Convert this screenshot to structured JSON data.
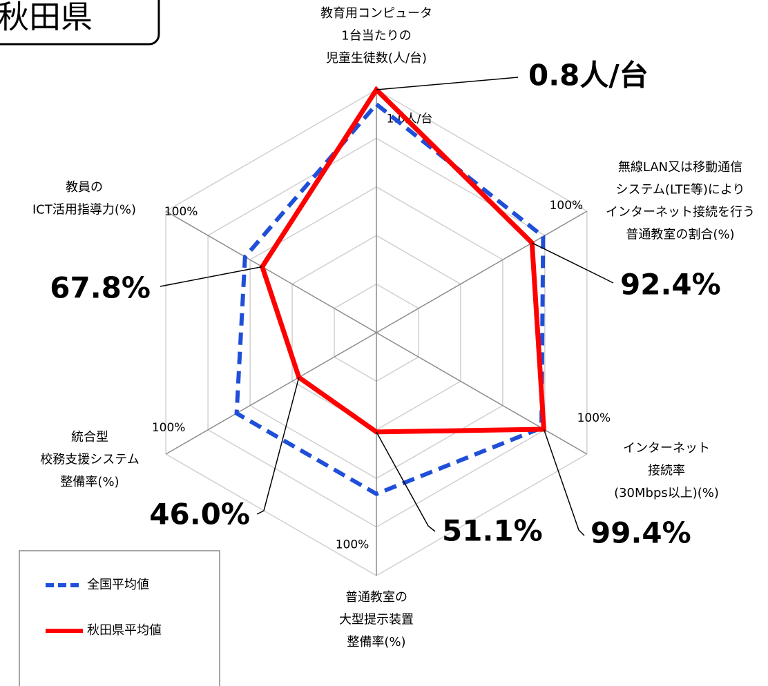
{
  "chart_data": {
    "type": "radar",
    "title": "秋田県",
    "axes": [
      {
        "label": [
          "教育用コンピュータ",
          "1台当たりの",
          "児童生徒数(人/台)"
        ],
        "rlim": [
          1.8,
          0.8
        ],
        "ticks": [
          {
            "value": 1.0,
            "label": "1.0人/台"
          }
        ]
      },
      {
        "label": [
          "無線LAN又は移動通信",
          "システム(LTE等)により",
          "インターネット接続を行う",
          "普通教室の割合(%)"
        ],
        "rlim": [
          0,
          125
        ],
        "ticks": [
          {
            "value": 100,
            "label": "100%"
          }
        ]
      },
      {
        "label": [
          "インターネット",
          "接続率",
          "(30Mbps以上)(%)"
        ],
        "rlim": [
          0,
          125
        ],
        "ticks": [
          {
            "value": 100,
            "label": "100%"
          }
        ]
      },
      {
        "label": [
          "普通教室の",
          "大型提示装置",
          "整備率(%)"
        ],
        "rlim": [
          0,
          125
        ],
        "ticks": [
          {
            "value": 100,
            "label": "100%"
          }
        ]
      },
      {
        "label": [
          "統合型",
          "校務支援システム",
          "整備率(%)"
        ],
        "rlim": [
          0,
          125
        ],
        "ticks": [
          {
            "value": 100,
            "label": "100%"
          }
        ]
      },
      {
        "label": [
          "教員の",
          "ICT活用指導力(%)"
        ],
        "rlim": [
          0,
          125
        ],
        "ticks": [
          {
            "value": 100,
            "label": "100%"
          }
        ]
      }
    ],
    "series": [
      {
        "name": "全国平均値",
        "color": "#1f4fd8",
        "dashed": true,
        "values": [
          0.86,
          99,
          98,
          83,
          83,
          78
        ]
      },
      {
        "name": "秋田県平均値",
        "color": "#ff0000",
        "dashed": false,
        "values": [
          0.8,
          92.4,
          99.4,
          51.1,
          46.0,
          67.8
        ],
        "value_labels": [
          "0.8人/台",
          "92.4%",
          "99.4%",
          "51.1%",
          "46.0%",
          "67.8%"
        ]
      }
    ]
  }
}
